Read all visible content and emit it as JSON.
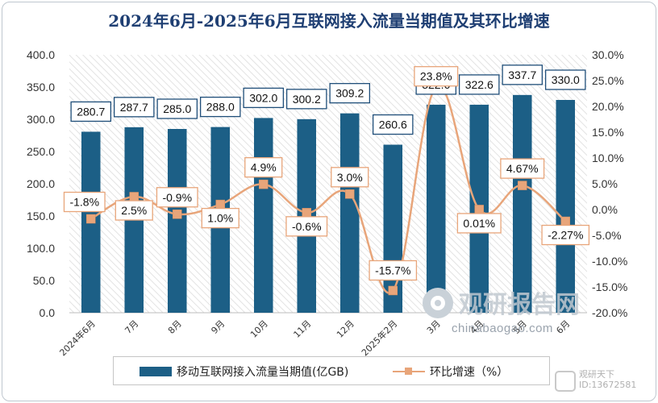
{
  "chart_data": {
    "type": "bar",
    "title": "2024年6月-2025年6月互联网接入流量当期值及其环比增速",
    "categories": [
      "2024年6月",
      "7月",
      "8月",
      "9月",
      "10月",
      "11月",
      "12月",
      "2025年2月",
      "3月",
      "4月",
      "5月",
      "6月"
    ],
    "series": [
      {
        "name": "移动互联网接入流量当期值(亿GB)",
        "type": "bar",
        "axis": "left",
        "color": "#1c5f86",
        "values": [
          280.7,
          287.7,
          285.0,
          288.0,
          302.0,
          300.2,
          309.2,
          260.6,
          322.6,
          322.6,
          337.7,
          330.0
        ],
        "labels": [
          "280.7",
          "287.7",
          "285.0",
          "288.0",
          "302.0",
          "300.2",
          "309.2",
          "260.6",
          "322.6",
          "322.6",
          "337.7",
          "330.0"
        ]
      },
      {
        "name": "环比增速（%）",
        "type": "line",
        "axis": "right",
        "color": "#e8a57a",
        "values": [
          -1.8,
          2.5,
          -0.9,
          1.0,
          4.9,
          -0.6,
          3.0,
          -15.7,
          23.8,
          0.01,
          4.67,
          -2.27
        ],
        "labels": [
          "-1.8%",
          "2.5%",
          "-0.9%",
          "1.0%",
          "4.9%",
          "-0.6%",
          "3.0%",
          "-15.7%",
          "23.8%",
          "0.01%",
          "4.67%",
          "-2.27%"
        ]
      }
    ],
    "y_left": {
      "range": [
        0,
        400
      ],
      "ticks": [
        "0.0",
        "50.0",
        "100.0",
        "150.0",
        "200.0",
        "250.0",
        "300.0",
        "350.0",
        "400.0"
      ]
    },
    "y_right": {
      "range": [
        -20,
        30
      ],
      "ticks": [
        "-20.0%",
        "-15.0%",
        "-10.0%",
        "-5.0%",
        "0.0%",
        "5.0%",
        "10.0%",
        "15.0%",
        "20.0%",
        "25.0%",
        "30.0%"
      ]
    },
    "grid": false,
    "plot_background": "hatched",
    "legend_position": "bottom"
  },
  "watermark": {
    "brand": "观研报告网",
    "url": "chinabaogao.com",
    "corner_name": "观研天下",
    "corner_id": "ID:13672581"
  }
}
